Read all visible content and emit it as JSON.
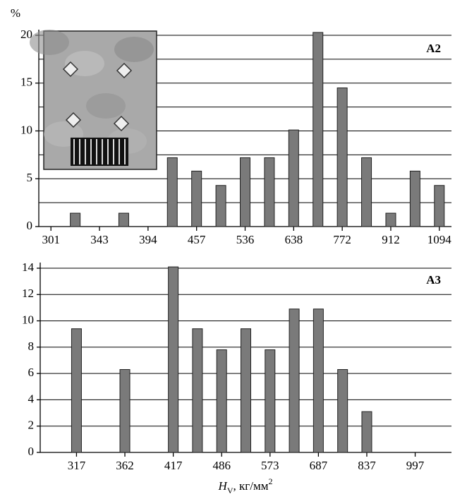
{
  "chart_data": [
    {
      "type": "bar",
      "y_label": "%",
      "panel_label": "A2",
      "categories": [
        "301",
        null,
        "343",
        null,
        "394",
        null,
        "457",
        null,
        "536",
        null,
        "638",
        null,
        "772",
        null,
        "912",
        null,
        "1094"
      ],
      "values": [
        0,
        1.4,
        0,
        1.4,
        0,
        7.2,
        5.8,
        4.3,
        7.2,
        7.2,
        10.1,
        20.3,
        14.5,
        7.2,
        1.4,
        5.8,
        4.3
      ],
      "color": "#7a7a7a",
      "ylim": [
        0,
        20
      ],
      "yticks": [
        0,
        5,
        10,
        15,
        20
      ],
      "minor_grid": [
        2.5,
        7.5,
        12.5,
        17.5
      ],
      "grid": true
    },
    {
      "type": "bar",
      "panel_label": "A3",
      "x_label": {
        "symbol": "H",
        "subscript": "V",
        "unit": ", кг/мм",
        "power": "2"
      },
      "categories": [
        null,
        "317",
        null,
        "362",
        null,
        "417",
        null,
        "486",
        null,
        "573",
        null,
        "687",
        null,
        "837",
        null,
        "997",
        null
      ],
      "values": [
        0,
        9.4,
        0,
        6.3,
        0,
        14.1,
        9.4,
        7.8,
        9.4,
        7.8,
        10.9,
        10.9,
        6.3,
        3.1,
        0,
        0,
        0
      ],
      "color": "#7a7a7a",
      "ylim": [
        0,
        14
      ],
      "yticks": [
        0,
        2,
        4,
        6,
        8,
        10,
        12,
        14
      ],
      "grid": true
    }
  ]
}
